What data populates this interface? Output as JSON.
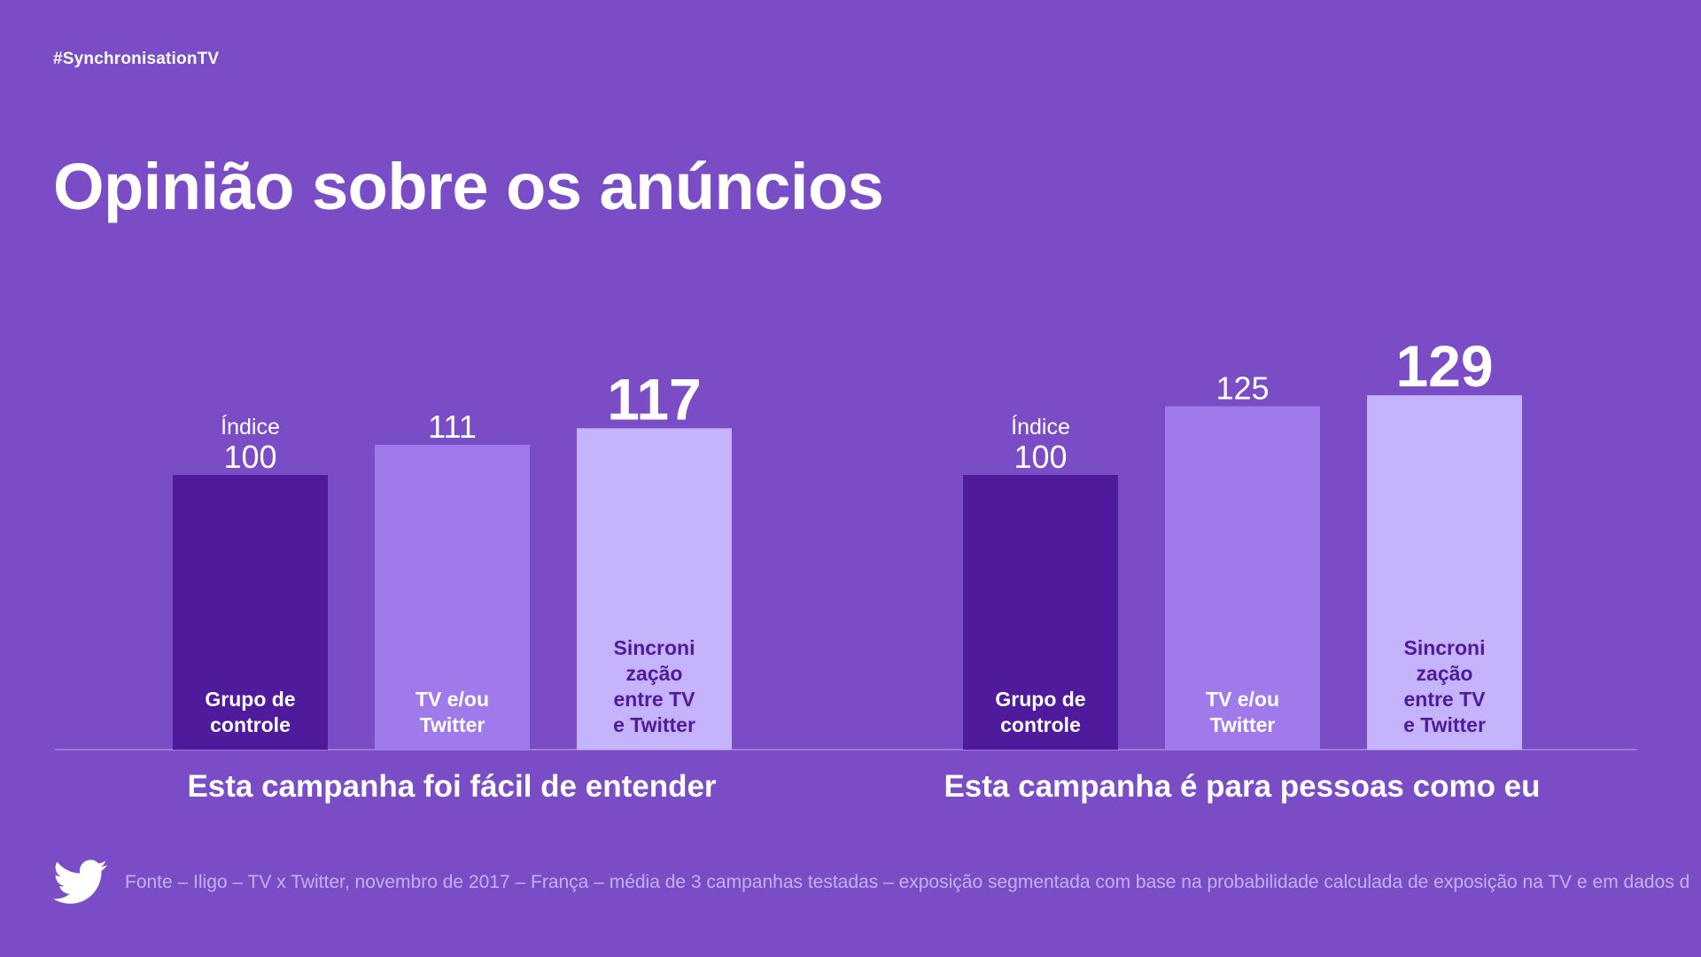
{
  "header": {
    "hashtag": "#SynchronisationTV",
    "title": "Opinião sobre os anúncios"
  },
  "colors": {
    "background": "#7a4cc6",
    "baseline": "#a68ae6",
    "bar_control": "#4f1a9b",
    "bar_tv_twitter": "#a07aeb",
    "bar_sync": "#c5b3fb",
    "label_dark": "#4f1a9b",
    "footnote": "#c3b2f0"
  },
  "chart_data": [
    {
      "type": "bar",
      "title": "Esta campanha foi fácil de entender",
      "categories": [
        "Grupo de controle",
        "TV e/ou Twitter",
        "Sincroni zação entre TV e Twitter"
      ],
      "category_lines": [
        [
          "Grupo de",
          "controle"
        ],
        [
          "TV e/ou",
          "Twitter"
        ],
        [
          "Sincroni",
          "zação",
          "entre TV",
          "e Twitter"
        ]
      ],
      "values": [
        100,
        111,
        117
      ],
      "value_labels": [
        "100",
        "111",
        "117"
      ],
      "value_prefix": [
        "Índice",
        "",
        ""
      ],
      "highlight_index": 2,
      "grid": false
    },
    {
      "type": "bar",
      "title": "Esta campanha é para pessoas como eu",
      "categories": [
        "Grupo de controle",
        "TV e/ou Twitter",
        "Sincroni zação entre TV e Twitter"
      ],
      "category_lines": [
        [
          "Grupo de",
          "controle"
        ],
        [
          "TV e/ou",
          "Twitter"
        ],
        [
          "Sincroni",
          "zação",
          "entre TV",
          "e Twitter"
        ]
      ],
      "values": [
        100,
        125,
        129
      ],
      "value_labels": [
        "100",
        "125",
        "129"
      ],
      "value_prefix": [
        "Índice",
        "",
        ""
      ],
      "highlight_index": 2,
      "grid": false
    }
  ],
  "footer": {
    "logo_icon": "twitter-bird-icon",
    "source": "Fonte – Iligo – TV x Twitter, novembro de 2017 – França – média de 3 campanhas testadas – exposição segmentada com base na probabilidade calculada de exposição na TV e em dados d"
  }
}
